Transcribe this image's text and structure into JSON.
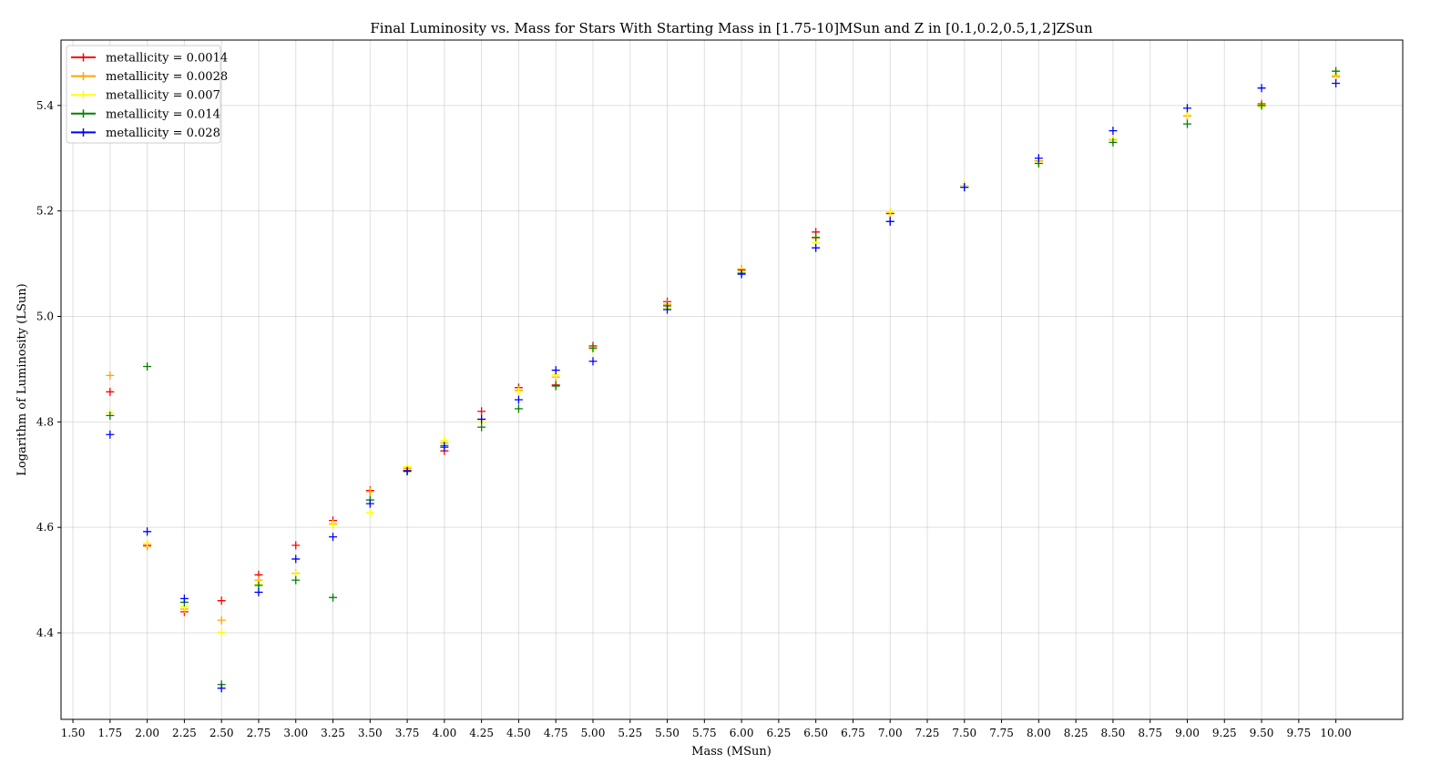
{
  "chart_data": {
    "type": "scatter",
    "title": "Final Luminosity vs. Mass for Stars With Starting Mass in [1.75-10]MSun and Z in [0.1,0.2,0.5,1,2]ZSun",
    "xlabel": "Mass (MSun)",
    "ylabel": "Logarithm of Luminosity (LSun)",
    "xlim": [
      1.42,
      10.45
    ],
    "ylim": [
      4.236,
      5.524
    ],
    "xticks": [
      1.5,
      1.75,
      2.0,
      2.25,
      2.5,
      2.75,
      3.0,
      3.25,
      3.5,
      3.75,
      4.0,
      4.25,
      4.5,
      4.75,
      5.0,
      5.25,
      5.5,
      5.75,
      6.0,
      6.25,
      6.5,
      6.75,
      7.0,
      7.25,
      7.5,
      7.75,
      8.0,
      8.25,
      8.5,
      8.75,
      9.0,
      9.25,
      9.5,
      9.75,
      10.0
    ],
    "xtick_labels": [
      "1.50",
      "1.75",
      "2.00",
      "2.25",
      "2.50",
      "2.75",
      "3.00",
      "3.25",
      "3.50",
      "3.75",
      "4.00",
      "4.25",
      "4.50",
      "4.75",
      "5.00",
      "5.25",
      "5.50",
      "5.75",
      "6.00",
      "6.25",
      "6.50",
      "6.75",
      "7.00",
      "7.25",
      "7.50",
      "7.75",
      "8.00",
      "8.25",
      "8.50",
      "8.75",
      "9.00",
      "9.25",
      "9.50",
      "9.75",
      "10.00"
    ],
    "yticks": [
      4.4,
      4.6,
      4.8,
      5.0,
      5.2,
      5.4
    ],
    "ytick_labels": [
      "4.4",
      "4.6",
      "4.8",
      "5.0",
      "5.2",
      "5.4"
    ],
    "grid": true,
    "legend_position": "top-left",
    "marker": "plus",
    "x": [
      1.75,
      2.0,
      2.25,
      2.5,
      2.75,
      3.0,
      3.25,
      3.5,
      3.75,
      4.0,
      4.25,
      4.5,
      4.75,
      5.0,
      5.5,
      6.0,
      6.5,
      7.0,
      7.5,
      8.0,
      8.5,
      9.0,
      9.5,
      10.0
    ],
    "series": [
      {
        "name": "metallicity = 0.0014",
        "color": "#ff0000",
        "values": [
          4.857,
          4.566,
          4.44,
          4.461,
          4.51,
          4.566,
          4.613,
          4.67,
          4.708,
          4.745,
          4.82,
          4.865,
          4.87,
          4.944,
          5.028,
          5.088,
          5.16,
          5.195,
          5.248,
          5.295,
          5.335,
          5.38,
          5.403,
          5.455
        ]
      },
      {
        "name": "metallicity = 0.0028",
        "color": "#ffa500",
        "values": [
          4.888,
          4.564,
          4.445,
          4.424,
          4.5,
          4.513,
          4.607,
          4.668,
          4.712,
          4.76,
          4.805,
          4.86,
          4.885,
          4.94,
          5.023,
          5.09,
          5.148,
          5.197,
          5.248,
          5.295,
          5.335,
          5.38,
          5.402,
          5.455
        ]
      },
      {
        "name": "metallicity = 0.007",
        "color": "#ffff00",
        "values": [
          4.817,
          4.57,
          4.45,
          4.401,
          4.492,
          4.512,
          4.605,
          4.628,
          4.715,
          4.765,
          4.8,
          4.858,
          4.89,
          4.938,
          5.015,
          5.086,
          5.14,
          5.198,
          5.248,
          5.293,
          5.336,
          5.382,
          5.398,
          5.458
        ]
      },
      {
        "name": "metallicity = 0.014",
        "color": "#008000",
        "values": [
          4.812,
          4.905,
          4.458,
          4.302,
          4.49,
          4.5,
          4.467,
          4.652,
          4.706,
          4.755,
          4.79,
          4.825,
          4.868,
          4.94,
          5.02,
          5.082,
          5.15,
          5.18,
          5.245,
          5.29,
          5.33,
          5.365,
          5.4,
          5.465
        ]
      },
      {
        "name": "metallicity = 0.028",
        "color": "#0000ff",
        "values": [
          4.776,
          4.592,
          4.465,
          4.295,
          4.477,
          4.54,
          4.582,
          4.645,
          4.707,
          4.752,
          4.805,
          4.842,
          4.898,
          4.915,
          5.013,
          5.08,
          5.13,
          5.18,
          5.245,
          5.3,
          5.352,
          5.395,
          5.433,
          5.442
        ]
      }
    ]
  }
}
